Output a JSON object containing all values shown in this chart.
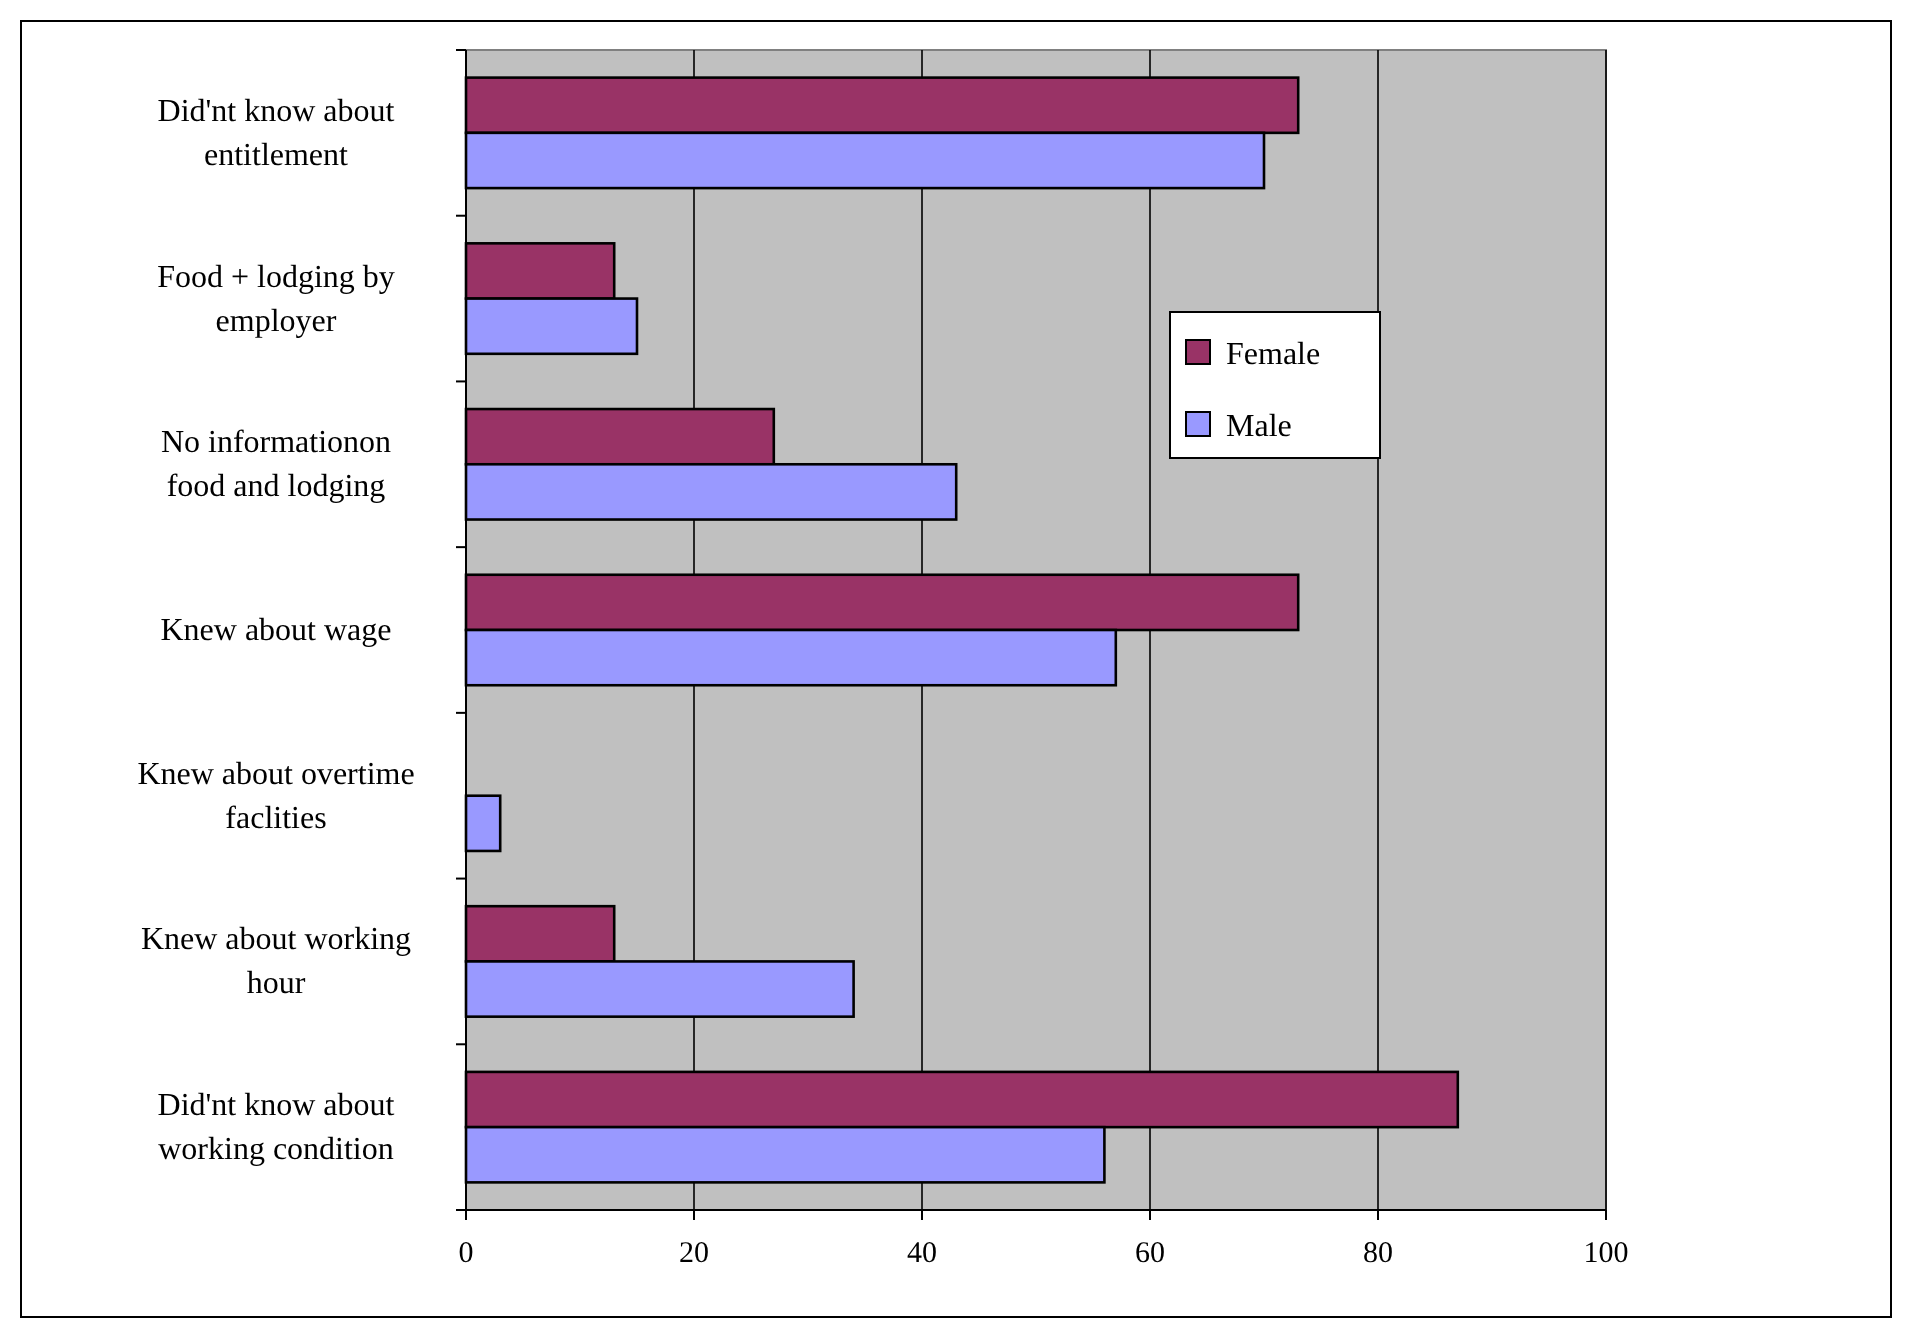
{
  "chart_data": {
    "type": "bar",
    "orientation": "horizontal",
    "categories": [
      "Did'nt know about entitlement",
      "Food + lodging by employer",
      "No informationon food and lodging",
      "Knew about wage",
      "Knew about overtime faclities",
      "Knew about working hour",
      "Did'nt know about working condition"
    ],
    "series": [
      {
        "name": "Female",
        "color": "#993366",
        "values": [
          73,
          13,
          27,
          73,
          0,
          13,
          87
        ]
      },
      {
        "name": "Male",
        "color": "#9999ff",
        "values": [
          70,
          15,
          43,
          57,
          3,
          34,
          56
        ]
      }
    ],
    "xlim": [
      0,
      100
    ],
    "xticks": [
      0,
      20,
      40,
      60,
      80,
      100
    ],
    "grid": "x",
    "legend": "right"
  }
}
